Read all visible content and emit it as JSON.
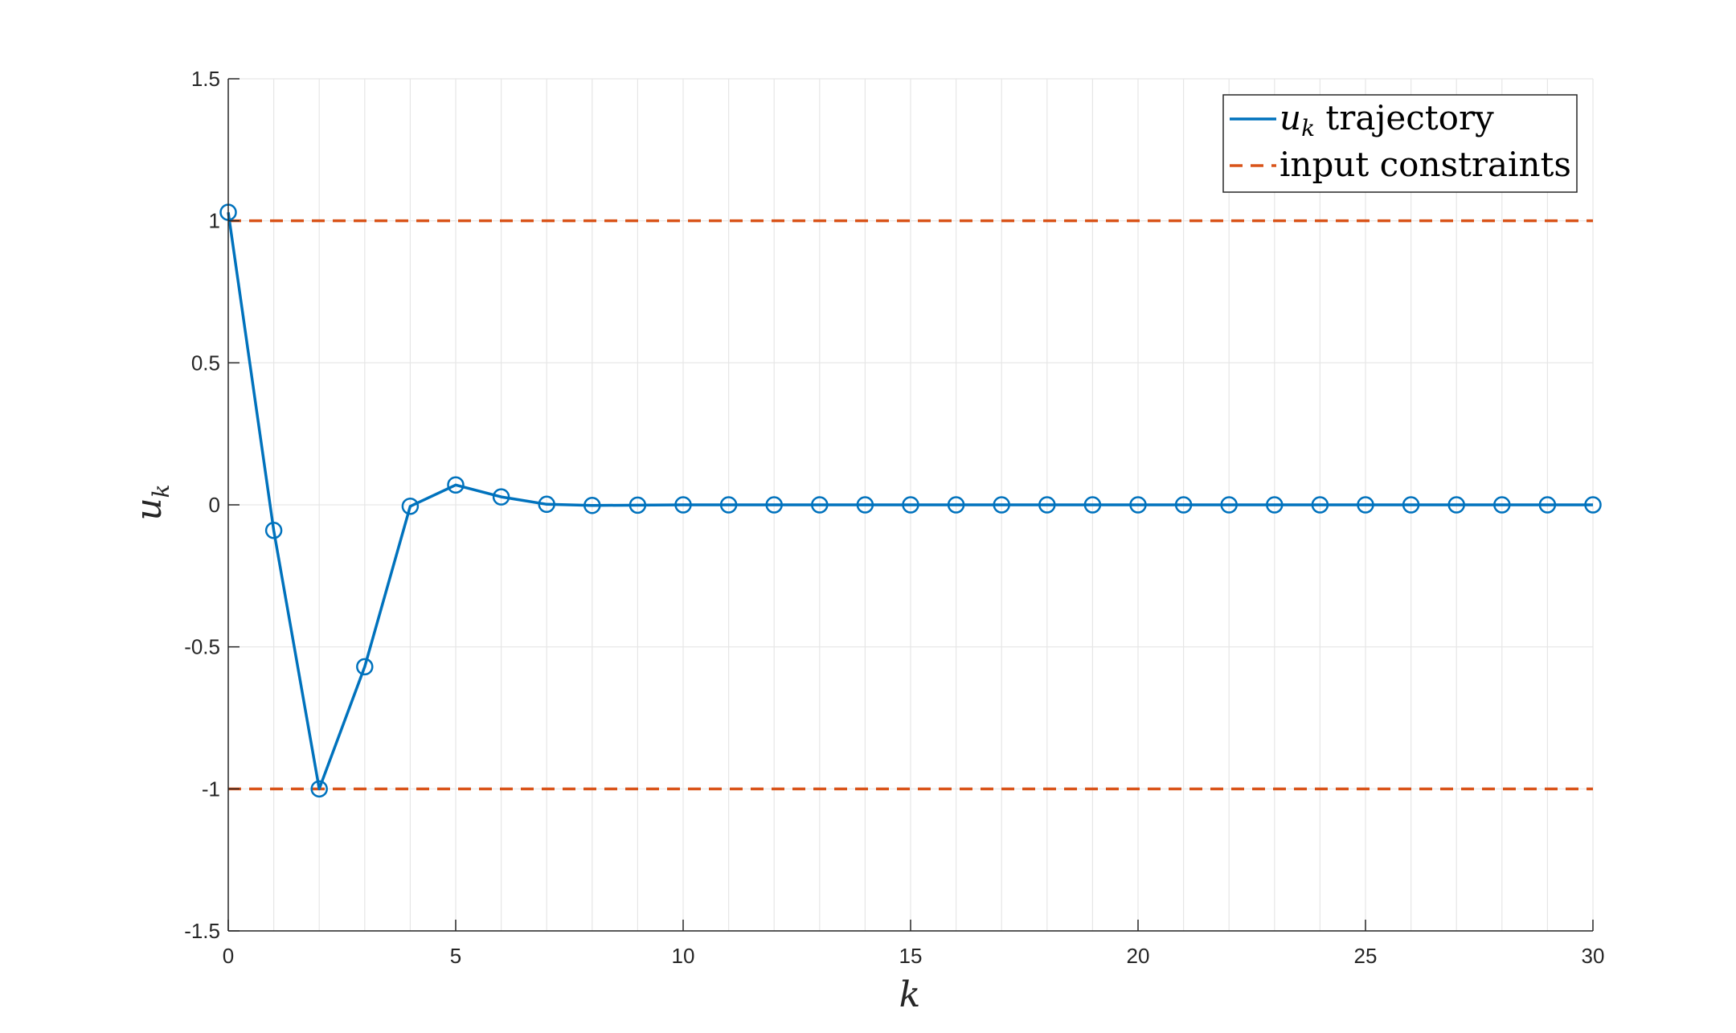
{
  "chart_data": {
    "type": "line",
    "x": [
      0,
      1,
      2,
      3,
      4,
      5,
      6,
      7,
      8,
      9,
      10,
      11,
      12,
      13,
      14,
      15,
      16,
      17,
      18,
      19,
      20,
      21,
      22,
      23,
      24,
      25,
      26,
      27,
      28,
      29,
      30
    ],
    "series": [
      {
        "name": "u_k trajectory",
        "values": [
          1.03,
          -0.09,
          -1.0,
          -0.57,
          -0.005,
          0.07,
          0.028,
          0.002,
          -0.002,
          -0.001,
          0,
          0,
          0,
          0,
          0,
          0,
          0,
          0,
          0,
          0,
          0,
          0,
          0,
          0,
          0,
          0,
          0,
          0,
          0,
          0,
          0
        ],
        "color": "#0072BD",
        "style": "solid",
        "marker": "circle"
      }
    ],
    "constraints": {
      "name": "input constraints",
      "levels": [
        1,
        -1
      ],
      "color": "#D95319",
      "style": "dashed"
    },
    "xlabel": "k",
    "ylabel_main": "u",
    "ylabel_sub": "k",
    "xlim": [
      0,
      30
    ],
    "ylim": [
      -1.5,
      1.5
    ],
    "xticks": [
      0,
      5,
      10,
      15,
      20,
      25,
      30
    ],
    "xtick_labels": [
      "0",
      "5",
      "10",
      "15",
      "20",
      "25",
      "30"
    ],
    "yticks": [
      -1.5,
      -1,
      -0.5,
      0,
      0.5,
      1,
      1.5
    ],
    "ytick_labels": [
      "-1.5",
      "-1",
      "-0.5",
      "0",
      "0.5",
      "1",
      "1.5"
    ],
    "grid": true,
    "legend": {
      "position": "top-right",
      "entries": [
        {
          "math": "u",
          "sub": "k",
          "text": " trajectory"
        },
        {
          "math": "",
          "sub": "",
          "text": "input constraints"
        }
      ]
    }
  }
}
